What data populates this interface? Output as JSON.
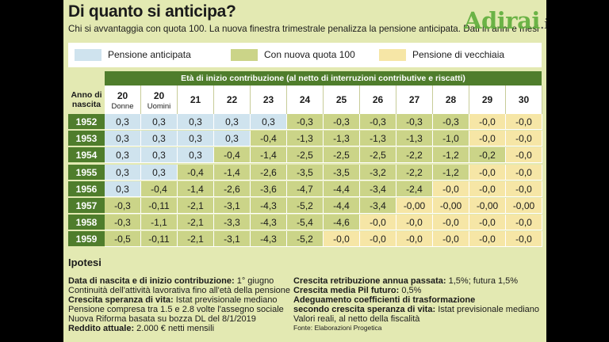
{
  "title": "Di quanto si anticipa?",
  "subtitle": "Chi si avvantaggia con quota 100. La nuova finestra trimestrale penalizza la pensione anticipata. Dati in anni e mesi",
  "watermark": {
    "brand": "Adirai",
    "tld": ".it"
  },
  "legend": [
    {
      "label": "Pensione anticipata",
      "color": "#cfe3ee"
    },
    {
      "label": "Con nuova quota 100",
      "color": "#cbd488"
    },
    {
      "label": "Pensione di vecchiaia",
      "color": "#f6e6a6"
    }
  ],
  "table": {
    "span_header": "Età di inizio contribuzione (al netto di interruzioni contributive e riscatti)",
    "year_header": "Anno di nascita",
    "columns": [
      {
        "age": "20",
        "sub": "Donne"
      },
      {
        "age": "20",
        "sub": "Uomini"
      },
      {
        "age": "21",
        "sub": ""
      },
      {
        "age": "22",
        "sub": ""
      },
      {
        "age": "23",
        "sub": ""
      },
      {
        "age": "24",
        "sub": ""
      },
      {
        "age": "25",
        "sub": ""
      },
      {
        "age": "26",
        "sub": ""
      },
      {
        "age": "27",
        "sub": ""
      },
      {
        "age": "28",
        "sub": ""
      },
      {
        "age": "29",
        "sub": ""
      },
      {
        "age": "30",
        "sub": ""
      }
    ],
    "rows": [
      {
        "year": "1952",
        "values": [
          "0,3",
          "0,3",
          "0,3",
          "0,3",
          "0,3",
          "-0,3",
          "-0,3",
          "-0,3",
          "-0,3",
          "-0,3",
          "-0,0",
          "-0,0"
        ],
        "cats": [
          "a",
          "a",
          "a",
          "a",
          "a",
          "q",
          "q",
          "q",
          "q",
          "q",
          "v",
          "v"
        ]
      },
      {
        "year": "1953",
        "values": [
          "0,3",
          "0,3",
          "0,3",
          "0,3",
          "-0,4",
          "-1,3",
          "-1,3",
          "-1,3",
          "-1,3",
          "-1,0",
          "-0,0",
          "-0,0"
        ],
        "cats": [
          "a",
          "a",
          "a",
          "a",
          "q",
          "q",
          "q",
          "q",
          "q",
          "q",
          "v",
          "v"
        ]
      },
      {
        "year": "1954",
        "values": [
          "0,3",
          "0,3",
          "0,3",
          "-0,4",
          "-1,4",
          "-2,5",
          "-2,5",
          "-2,5",
          "-2,2",
          "-1,2",
          "-0,2",
          "-0,0"
        ],
        "cats": [
          "a",
          "a",
          "a",
          "q",
          "q",
          "q",
          "q",
          "q",
          "q",
          "q",
          "q",
          "v"
        ]
      },
      {
        "year": "1955",
        "values": [
          "0,3",
          "0,3",
          "-0,4",
          "-1,4",
          "-2,6",
          "-3,5",
          "-3,5",
          "-3,2",
          "-2,2",
          "-1,2",
          "-0,0",
          "-0,0"
        ],
        "cats": [
          "a",
          "a",
          "q",
          "q",
          "q",
          "q",
          "q",
          "q",
          "q",
          "q",
          "v",
          "v"
        ]
      },
      {
        "year": "1956",
        "values": [
          "0,3",
          "-0,4",
          "-1,4",
          "-2,6",
          "-3,6",
          "-4,7",
          "-4,4",
          "-3,4",
          "-2,4",
          "-0,0",
          "-0,0",
          "-0,0"
        ],
        "cats": [
          "a",
          "q",
          "q",
          "q",
          "q",
          "q",
          "q",
          "q",
          "q",
          "v",
          "v",
          "v"
        ]
      },
      {
        "year": "1957",
        "values": [
          "-0,3",
          "-0,11",
          "-2,1",
          "-3,1",
          "-4,3",
          "-5,2",
          "-4,4",
          "-3,4",
          "-0,00",
          "-0,00",
          "-0,00",
          "-0,00"
        ],
        "cats": [
          "q",
          "q",
          "q",
          "q",
          "q",
          "q",
          "q",
          "q",
          "v",
          "v",
          "v",
          "v"
        ]
      },
      {
        "year": "1958",
        "values": [
          "-0,3",
          "-1,1",
          "-2,1",
          "-3,3",
          "-4,3",
          "-5,4",
          "-4,6",
          "-0,0",
          "-0,0",
          "-0,0",
          "-0,0",
          "-0,0"
        ],
        "cats": [
          "q",
          "q",
          "q",
          "q",
          "q",
          "q",
          "q",
          "v",
          "v",
          "v",
          "v",
          "v"
        ]
      },
      {
        "year": "1959",
        "values": [
          "-0,5",
          "-0,11",
          "-2,1",
          "-3,1",
          "-4,3",
          "-5,2",
          "-0,0",
          "-0,0",
          "-0,0",
          "-0,0",
          "-0,0",
          "-0,0"
        ],
        "cats": [
          "q",
          "q",
          "q",
          "q",
          "q",
          "q",
          "v",
          "v",
          "v",
          "v",
          "v",
          "v"
        ]
      }
    ]
  },
  "ipotesi": {
    "title": "Ipotesi",
    "left": [
      {
        "bold": "Data di nascita e di inizio contribuzione:",
        "text": " 1° giugno"
      },
      {
        "bold": "",
        "text": "Continuità dell'attività lavorativa fino all'età della pensione"
      },
      {
        "bold": "Crescita speranza di vita:",
        "text": " Istat previsionale mediano"
      },
      {
        "bold": "",
        "text": "Pensione compresa tra 1.5 e 2.8 volte l'assegno sociale"
      },
      {
        "bold": "",
        "text": "Nuova Riforma basata su bozza DL del 8/1/2019"
      },
      {
        "bold": "Reddito attuale:",
        "text": " 2.000 € netti mensili"
      }
    ],
    "right": [
      {
        "bold": "Crescita retribuzione annua passata:",
        "text": " 1,5%; futura 1,5%"
      },
      {
        "bold": "Crescita media Pil futuro:",
        "text": " 0,5%"
      },
      {
        "bold": "Adeguamento coefficienti di trasformazione",
        "text": ""
      },
      {
        "bold": "secondo crescita speranza di vita:",
        "text": " Istat previsionale mediano"
      },
      {
        "bold": "",
        "text": "Valori reali, al netto della fiscalità"
      }
    ],
    "source": "Fonte: Elaborazioni Progetica"
  }
}
